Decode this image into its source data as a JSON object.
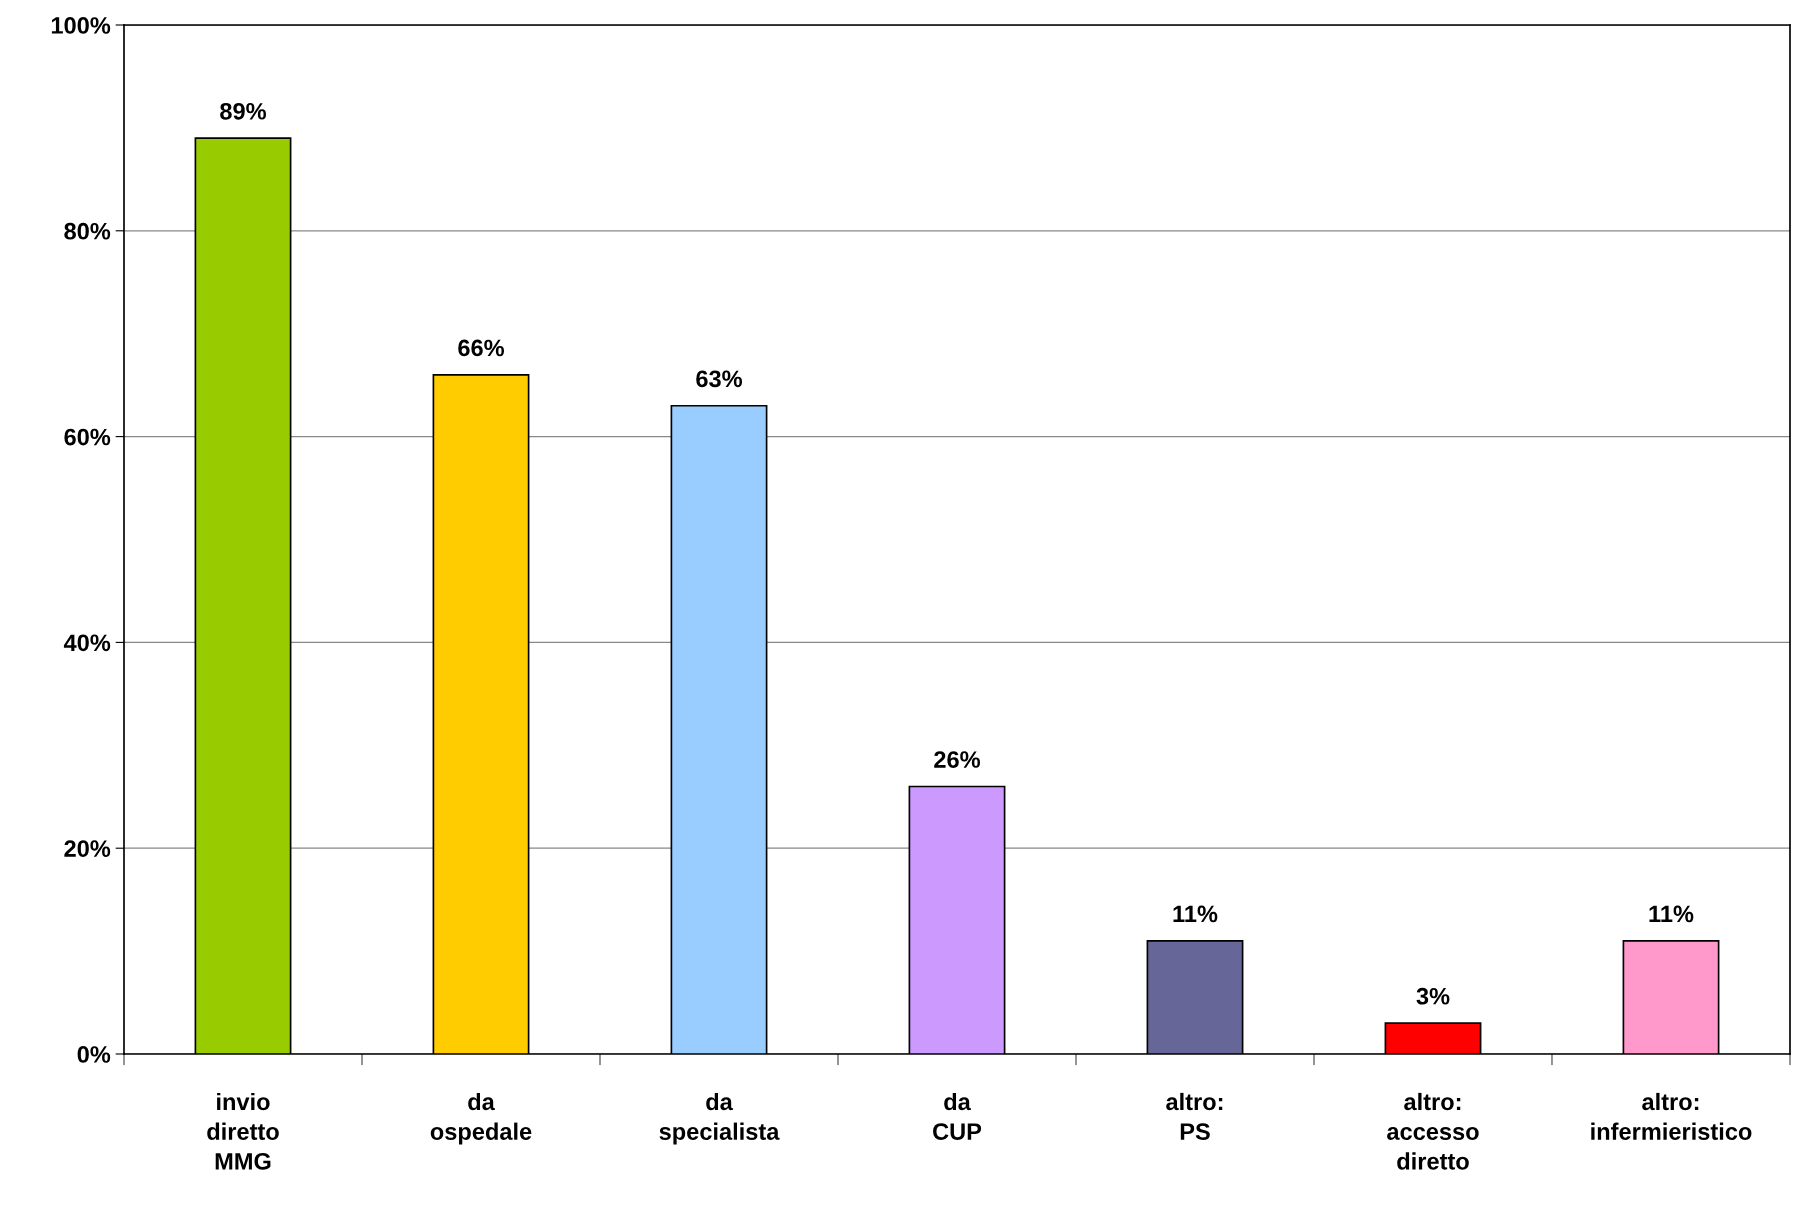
{
  "chart_data": {
    "type": "bar",
    "categories": [
      "invio\ndiretto\nMMG",
      "da\nospedale",
      "da\nspecialista",
      "da\nCUP",
      "altro:\nPS",
      "altro:\naccesso\ndiretto",
      "altro:\ninfermieristico"
    ],
    "values": [
      89,
      66,
      63,
      26,
      11,
      3,
      11
    ],
    "colors": [
      "#99cc00",
      "#ffcc00",
      "#99ccff",
      "#cc99ff",
      "#666699",
      "#ff0000",
      "#ff99cc"
    ],
    "value_labels": [
      "89%",
      "66%",
      "63%",
      "26%",
      "11%",
      "3%",
      "11%"
    ],
    "ylim": [
      0,
      100
    ],
    "yticks": [
      {
        "value": 0,
        "label": "0%"
      },
      {
        "value": 20,
        "label": "20%"
      },
      {
        "value": 40,
        "label": "40%"
      },
      {
        "value": 60,
        "label": "60%"
      },
      {
        "value": 80,
        "label": "80%"
      },
      {
        "value": 100,
        "label": "100%"
      }
    ],
    "grid": "y",
    "legend": false
  }
}
